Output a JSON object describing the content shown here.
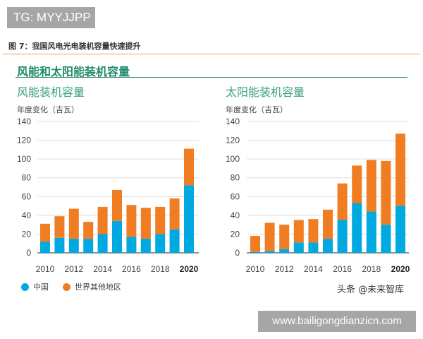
{
  "header_tag": "TG: MYYJJPP",
  "figure_caption": "图 7：我国风电光电装机容量快速提升",
  "main_title": "风能和太阳能装机容量",
  "legend": [
    {
      "label": "中国",
      "color": "#00a9e0"
    },
    {
      "label": "世界其他地区",
      "color": "#f07d22"
    }
  ],
  "watermark": "头条 @未来智库",
  "site_banner": "www.bailigongdianzicn.com",
  "chart_data": [
    {
      "type": "bar",
      "stacked": true,
      "title": "风能装机容量",
      "ylabel": "年度变化（吉瓦）",
      "ylim": [
        0,
        140
      ],
      "yticks": [
        "0",
        "20",
        "40",
        "60",
        "80",
        "100",
        "120",
        "140"
      ],
      "categories": [
        "2010",
        "2011",
        "2012",
        "2013",
        "2014",
        "2015",
        "2016",
        "2017",
        "2018",
        "2019",
        "2020"
      ],
      "xtick_labels": [
        "2010",
        "2012",
        "2014",
        "2016",
        "2018",
        "2020"
      ],
      "grid": true,
      "series": [
        {
          "name": "中国",
          "values": [
            12,
            16,
            15,
            15,
            20,
            34,
            17,
            15,
            20,
            25,
            72
          ]
        },
        {
          "name": "世界其他地区",
          "values": [
            19,
            23,
            32,
            18,
            29,
            33,
            34,
            33,
            29,
            33,
            39
          ]
        }
      ]
    },
    {
      "type": "bar",
      "stacked": true,
      "title": "太阳能装机容量",
      "ylabel": "年度变化（吉瓦）",
      "ylim": [
        0,
        140
      ],
      "yticks": [
        "0",
        "20",
        "40",
        "60",
        "80",
        "100",
        "120",
        "140"
      ],
      "categories": [
        "2010",
        "2011",
        "2012",
        "2013",
        "2014",
        "2015",
        "2016",
        "2017",
        "2018",
        "2019",
        "2020"
      ],
      "xtick_labels": [
        "2010",
        "2012",
        "2014",
        "2016",
        "2018",
        "2020"
      ],
      "grid": true,
      "series": [
        {
          "name": "中国",
          "values": [
            1,
            2,
            4,
            11,
            11,
            15,
            35,
            53,
            44,
            30,
            50
          ]
        },
        {
          "name": "世界其他地区",
          "values": [
            17,
            30,
            26,
            24,
            25,
            31,
            39,
            40,
            55,
            68,
            77
          ]
        }
      ]
    }
  ]
}
